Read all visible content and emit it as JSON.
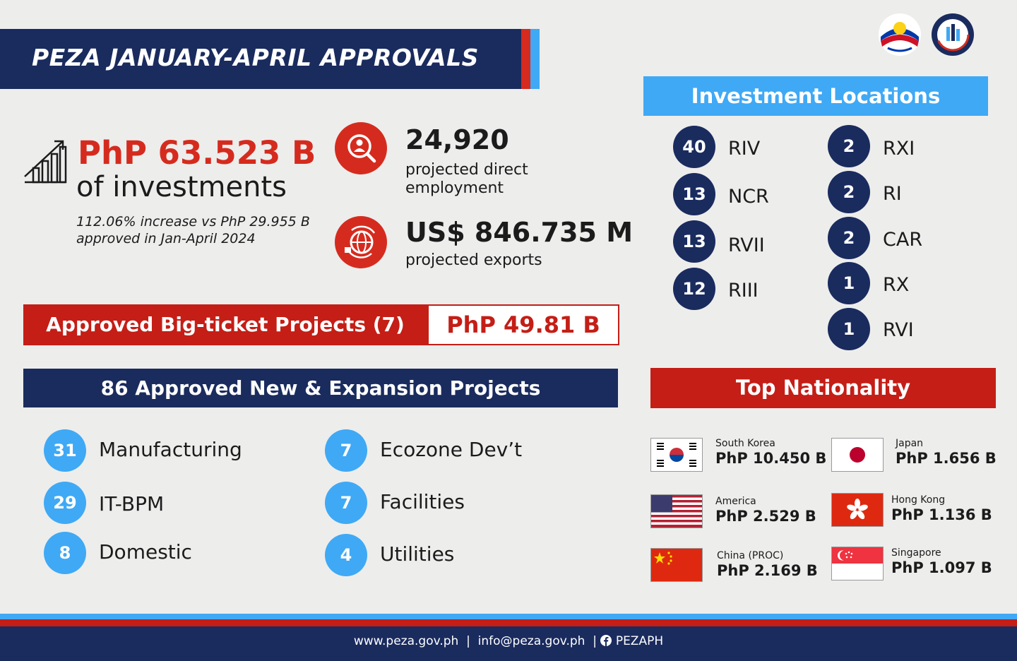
{
  "header": {
    "title": "PEZA JANUARY-APRIL APPROVALS"
  },
  "investments": {
    "amount": "PhP 63.523 B",
    "label": "of investments",
    "note": "112.06% increase vs PhP 29.955 B approved in Jan-April 2024"
  },
  "employment": {
    "value": "24,920",
    "label": "projected direct employment"
  },
  "exports": {
    "value": "US$ 846.735 M",
    "label": "projected exports"
  },
  "big_ticket": {
    "label": "Approved Big-ticket Projects (7)",
    "value": "PhP 49.81 B"
  },
  "projects": {
    "title": "86 Approved New & Expansion Projects",
    "items": [
      {
        "count": "31",
        "label": "Manufacturing"
      },
      {
        "count": "29",
        "label": "IT-BPM"
      },
      {
        "count": "8",
        "label": "Domestic"
      },
      {
        "count": "7",
        "label": "Ecozone Dev’t"
      },
      {
        "count": "7",
        "label": "Facilities"
      },
      {
        "count": "4",
        "label": "Utilities"
      }
    ]
  },
  "locations": {
    "title": "Investment Locations",
    "items": [
      {
        "count": "40",
        "label": "RIV"
      },
      {
        "count": "13",
        "label": "NCR"
      },
      {
        "count": "13",
        "label": "RVII"
      },
      {
        "count": "12",
        "label": "RIII"
      },
      {
        "count": "2",
        "label": "RXI"
      },
      {
        "count": "2",
        "label": "RI"
      },
      {
        "count": "2",
        "label": "CAR"
      },
      {
        "count": "1",
        "label": "RX"
      },
      {
        "count": "1",
        "label": "RVI"
      }
    ]
  },
  "nationality": {
    "title": "Top Nationality",
    "items": [
      {
        "country": "South Korea",
        "value": "PhP 10.450 B",
        "flag": "south-korea-flag"
      },
      {
        "country": "America",
        "value": "PhP 2.529 B",
        "flag": "usa-flag"
      },
      {
        "country": "China (PROC)",
        "value": "PhP 2.169 B",
        "flag": "china-flag"
      },
      {
        "country": "Japan",
        "value": "PhP 1.656 B",
        "flag": "japan-flag"
      },
      {
        "country": "Hong Kong",
        "value": "PhP 1.136 B",
        "flag": "hong-kong-flag"
      },
      {
        "country": "Singapore",
        "value": "PhP 1.097 B",
        "flag": "singapore-flag"
      }
    ]
  },
  "footer": {
    "website": "www.peza.gov.ph",
    "email": "info@peza.gov.ph",
    "facebook": "PEZAPH"
  },
  "colors": {
    "navy": "#1a2b5e",
    "red": "#d52b1e",
    "blue": "#3fa9f5"
  }
}
